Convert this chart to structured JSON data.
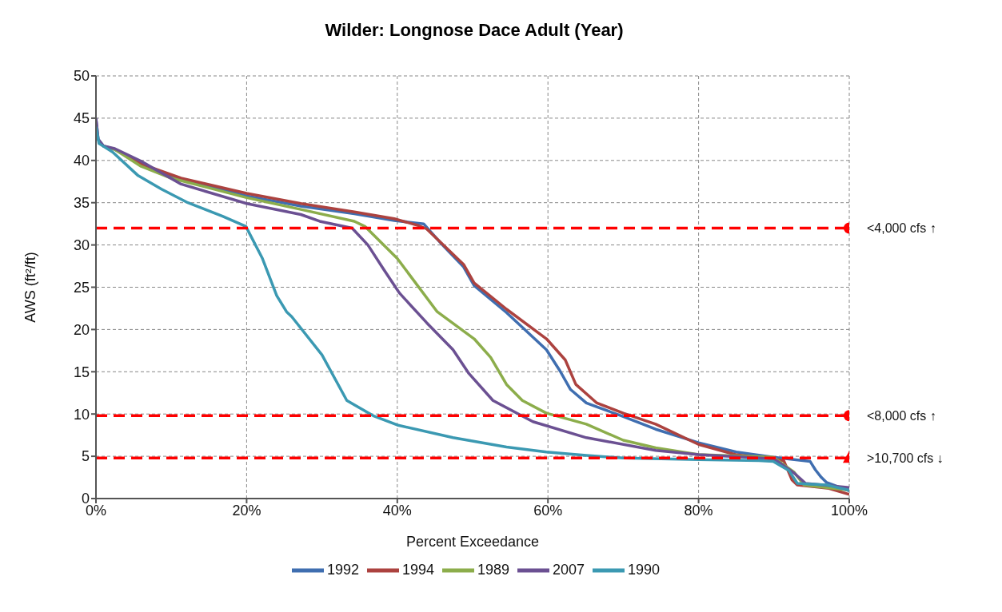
{
  "chart_data": {
    "type": "line",
    "title": "Wilder: Longnose Dace Adult (Year)",
    "xlabel": "Percent Exceedance",
    "ylabel": "AWS (ft²/ft)",
    "xlim": [
      0,
      100
    ],
    "xticks": [
      {
        "value": 0,
        "label": "0%"
      },
      {
        "value": 20,
        "label": "20%"
      },
      {
        "value": 40,
        "label": "40%"
      },
      {
        "value": 60,
        "label": "60%"
      },
      {
        "value": 80,
        "label": "80%"
      },
      {
        "value": 100,
        "label": "100%"
      }
    ],
    "ylim": [
      0,
      50
    ],
    "yticks": [
      0,
      5,
      10,
      15,
      20,
      25,
      30,
      35,
      40,
      45,
      50
    ],
    "grid": true,
    "legend": "bottom",
    "series": [
      {
        "name": "1992",
        "color": "#3f6eb0",
        "x": [
          0,
          0.3,
          1,
          2.5,
          6,
          11.3,
          20,
          27.2,
          34.3,
          39.6,
          43.5,
          46,
          48.8,
          50.2,
          54.5,
          59.8,
          61.6,
          63,
          65.1,
          70,
          74.3,
          80,
          85,
          89.9,
          94.8,
          95.5,
          96.3,
          97,
          100
        ],
        "values": [
          45,
          42.5,
          41.7,
          41.3,
          39.5,
          37.7,
          35.8,
          34.6,
          33.7,
          32.9,
          32.5,
          30,
          27.4,
          25.2,
          22,
          17.6,
          15.1,
          12.9,
          11.3,
          9.7,
          8.2,
          6.6,
          5.5,
          4.9,
          4.4,
          3.4,
          2.5,
          1.9,
          0.9
        ]
      },
      {
        "name": "1994",
        "color": "#ac423f",
        "x": [
          2.5,
          6,
          11.3,
          20,
          27.2,
          34.3,
          39.6,
          42.8,
          43.9,
          48.8,
          50.2,
          54.5,
          59.8,
          62.3,
          63.7,
          66.5,
          70,
          74.3,
          80,
          84.9,
          91.3,
          92.4,
          93.1,
          97.3,
          100
        ],
        "values": [
          41.3,
          39.6,
          37.9,
          36.1,
          34.9,
          33.9,
          33.1,
          32.3,
          31.9,
          27.7,
          25.5,
          22.4,
          18.9,
          16.4,
          13.5,
          11.3,
          10.1,
          8.8,
          6.4,
          5.2,
          4.5,
          2.2,
          1.6,
          1.2,
          0.5
        ]
      },
      {
        "name": "1989",
        "color": "#8cad4b",
        "x": [
          1,
          2.5,
          6,
          10,
          20,
          27.2,
          34.3,
          35.7,
          40,
          45.3,
          50.2,
          52.4,
          54.5,
          56.6,
          59.8,
          65.1,
          70,
          74.3,
          80,
          89.9,
          92.7,
          94,
          100
        ],
        "values": [
          41.7,
          41.3,
          39.3,
          37.9,
          35.6,
          34.2,
          32.8,
          32.2,
          28.4,
          22.1,
          18.9,
          16.7,
          13.5,
          11.6,
          10.1,
          8.8,
          6.9,
          6,
          5.2,
          4.9,
          3.1,
          1.6,
          1
        ]
      },
      {
        "name": "2007",
        "color": "#6b5092",
        "x": [
          0,
          0.3,
          1,
          2.5,
          6,
          11.3,
          20,
          27.2,
          29.7,
          34,
          36.1,
          38.2,
          40.3,
          43.9,
          47.4,
          49.5,
          52.7,
          58,
          65.1,
          74.3,
          80,
          90,
          92.7,
          94.2,
          100
        ],
        "values": [
          45,
          42.5,
          41.7,
          41.4,
          39.9,
          37.2,
          34.9,
          33.6,
          32.8,
          32,
          30,
          27.1,
          24.3,
          20.8,
          17.6,
          14.8,
          11.6,
          9.1,
          7.2,
          5.7,
          5.2,
          4.7,
          3,
          1.8,
          1.3
        ]
      },
      {
        "name": "1990",
        "color": "#3b99b2",
        "x": [
          0,
          0.4,
          2.2,
          5.6,
          8.7,
          12.2,
          16.8,
          19.9,
          22.1,
          24,
          25.3,
          26,
          30,
          33.3,
          36.8,
          40,
          47.4,
          54.5,
          59.8,
          65.1,
          70,
          80,
          88,
          89.9,
          92,
          93.1,
          97,
          100
        ],
        "values": [
          44,
          42,
          41,
          38.2,
          36.6,
          35,
          33.4,
          32.2,
          28.4,
          24,
          22.1,
          21.5,
          17,
          11.6,
          9.8,
          8.7,
          7.2,
          6.1,
          5.5,
          5.1,
          4.8,
          4.6,
          4.5,
          4.4,
          3.3,
          1.8,
          1.6,
          1
        ]
      },
      {
        "type": "scatter",
        "marker": "circle",
        "color": "#ff0000",
        "x": [
          100,
          100
        ],
        "values": [
          32,
          9.8
        ]
      },
      {
        "type": "scatter",
        "marker": "triangle",
        "color": "#ff0000",
        "x": [
          100
        ],
        "values": [
          4.8
        ]
      }
    ],
    "ref_lines": [
      {
        "axis": "y",
        "value": 32,
        "label": "<4,000 cfs ↑",
        "color": "#ff0000",
        "line_style": "dashed"
      },
      {
        "axis": "y",
        "value": 9.8,
        "label": "<8,000 cfs ↑",
        "color": "#ff0000",
        "line_style": "dashed"
      },
      {
        "axis": "y",
        "value": 4.8,
        "label": ">10,700 cfs ↓",
        "color": "#ff0000",
        "line_style": "dashed"
      }
    ]
  }
}
